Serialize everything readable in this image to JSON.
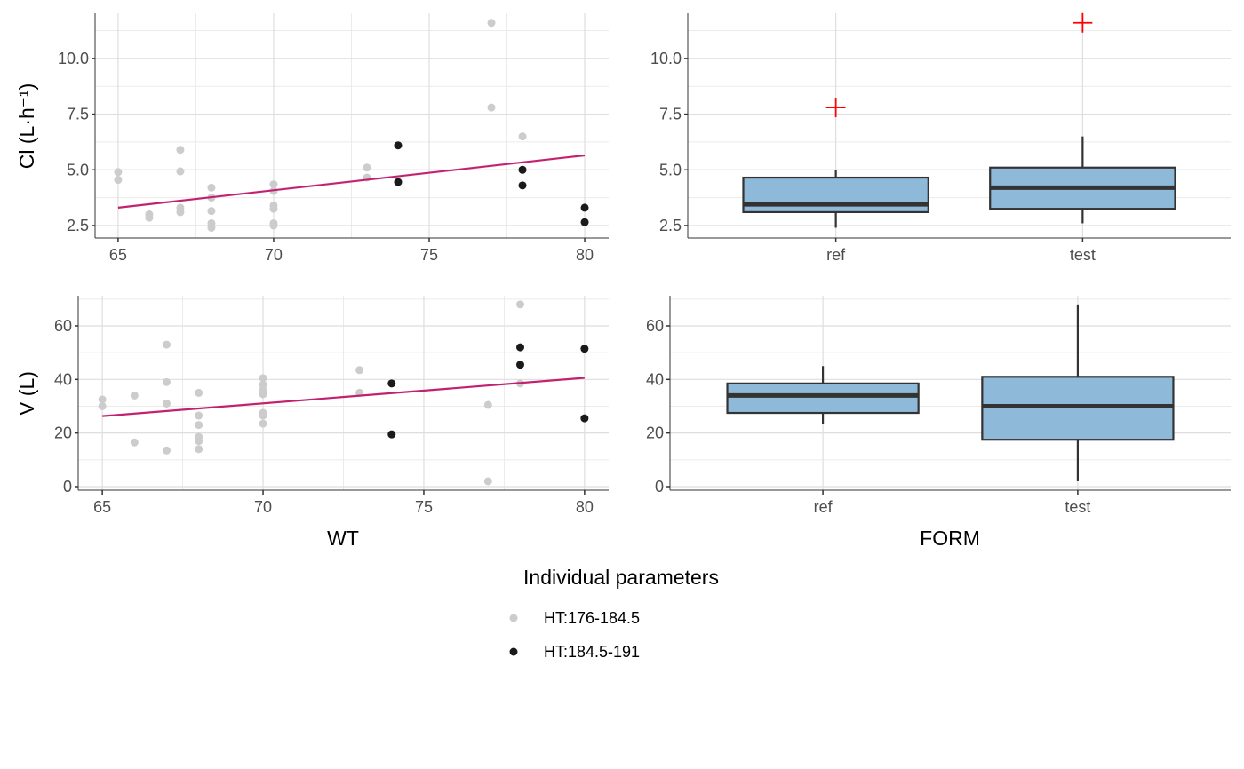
{
  "chart_data": [
    {
      "id": "cl-wt",
      "type": "scatter",
      "xlabel": "",
      "ylabel": "Cl (L·h⁻¹)",
      "xlim": [
        64.26,
        80.77
      ],
      "ylim": [
        1.94,
        12.03
      ],
      "xticks": [
        65,
        70,
        75,
        80
      ],
      "yticks": [
        2.5,
        5.0,
        7.5,
        10.0
      ],
      "ytick_labels": [
        "2.5",
        "5.0",
        "7.5",
        "10.0"
      ],
      "xminor": [
        67.5,
        72.5,
        77.5
      ],
      "yminor": [
        3.75,
        6.25,
        8.75,
        11.25
      ],
      "series": [
        {
          "name": "HT:176-184.5",
          "color": "#cccccc",
          "points": [
            [
              65,
              4.9
            ],
            [
              65,
              4.55
            ],
            [
              66,
              3.0
            ],
            [
              66,
              2.85
            ],
            [
              67,
              5.9
            ],
            [
              67,
              4.93
            ],
            [
              67,
              3.3
            ],
            [
              67,
              3.1
            ],
            [
              68,
              4.2
            ],
            [
              68,
              3.75
            ],
            [
              68,
              3.15
            ],
            [
              68,
              2.6
            ],
            [
              68,
              2.4
            ],
            [
              70,
              4.35
            ],
            [
              70,
              4.05
            ],
            [
              70,
              3.4
            ],
            [
              70,
              3.25
            ],
            [
              70,
              2.6
            ],
            [
              70,
              2.5
            ],
            [
              73,
              5.1
            ],
            [
              73,
              4.65
            ],
            [
              77,
              11.6
            ],
            [
              77,
              7.8
            ],
            [
              78,
              6.5
            ],
            [
              78,
              5.0
            ]
          ]
        },
        {
          "name": "HT:184.5-191",
          "color": "#1a1a1a",
          "points": [
            [
              74,
              6.1
            ],
            [
              74,
              4.45
            ],
            [
              78,
              5.0
            ],
            [
              78,
              4.3
            ],
            [
              80,
              3.3
            ],
            [
              80,
              2.65
            ]
          ]
        }
      ],
      "trend": {
        "color": "#c2216f",
        "from": [
          65,
          3.3
        ],
        "to": [
          80,
          5.65
        ]
      }
    },
    {
      "id": "cl-form",
      "type": "box",
      "xlabel": "",
      "ylabel": "",
      "categories": [
        "ref",
        "test"
      ],
      "ylim": [
        1.94,
        12.03
      ],
      "yticks": [
        2.5,
        5.0,
        7.5,
        10.0
      ],
      "ytick_labels": [
        "2.5",
        "5.0",
        "7.5",
        "10.0"
      ],
      "yminor": [
        3.75,
        6.25,
        8.75,
        11.25
      ],
      "boxes": [
        {
          "min": 2.4,
          "q1": 3.1,
          "median": 3.45,
          "q3": 4.65,
          "max": 5.0,
          "outliers": [
            7.8
          ]
        },
        {
          "min": 2.6,
          "q1": 3.25,
          "median": 4.2,
          "q3": 5.1,
          "max": 6.5,
          "outliers": [
            11.6
          ]
        }
      ],
      "fill": "#8fb9d9",
      "outlier_color": "#ff0000"
    },
    {
      "id": "v-wt",
      "type": "scatter",
      "xlabel": "WT",
      "ylabel": "V (L)",
      "xlim": [
        64.25,
        80.75
      ],
      "ylim": [
        -1.33,
        71.27
      ],
      "xticks": [
        65,
        70,
        75,
        80
      ],
      "yticks": [
        0,
        20,
        40,
        60
      ],
      "ytick_labels": [
        "0",
        "20",
        "40",
        "60"
      ],
      "xminor": [
        67.5,
        72.5,
        77.5
      ],
      "yminor": [
        10,
        30,
        50,
        70
      ],
      "series": [
        {
          "name": "HT:176-184.5",
          "color": "#cccccc",
          "points": [
            [
              65,
              32.5
            ],
            [
              65,
              30
            ],
            [
              66,
              34
            ],
            [
              66,
              16.5
            ],
            [
              67,
              53
            ],
            [
              67,
              39
            ],
            [
              67,
              31
            ],
            [
              67,
              13.5
            ],
            [
              68,
              35
            ],
            [
              68,
              26.5
            ],
            [
              68,
              23
            ],
            [
              68,
              18.5
            ],
            [
              68,
              17
            ],
            [
              68,
              14
            ],
            [
              70,
              40.5
            ],
            [
              70,
              38
            ],
            [
              70,
              36
            ],
            [
              70,
              34.5
            ],
            [
              70,
              27.5
            ],
            [
              70,
              26.5
            ],
            [
              70,
              23.5
            ],
            [
              73,
              43.5
            ],
            [
              73,
              35
            ],
            [
              77,
              30.5
            ],
            [
              77,
              2
            ],
            [
              78,
              68
            ],
            [
              78,
              38.5
            ]
          ]
        },
        {
          "name": "HT:184.5-191",
          "color": "#1a1a1a",
          "points": [
            [
              74,
              38.5
            ],
            [
              74,
              19.5
            ],
            [
              78,
              52
            ],
            [
              78,
              45.5
            ],
            [
              80,
              51.5
            ],
            [
              80,
              25.5
            ]
          ]
        }
      ],
      "trend": {
        "color": "#c2216f",
        "from": [
          65,
          26.3
        ],
        "to": [
          80,
          40.6
        ]
      }
    },
    {
      "id": "v-form",
      "type": "box",
      "xlabel": "FORM",
      "ylabel": "",
      "categories": [
        "ref",
        "test"
      ],
      "ylim": [
        -1.33,
        71.27
      ],
      "yticks": [
        0,
        20,
        40,
        60
      ],
      "ytick_labels": [
        "0",
        "20",
        "40",
        "60"
      ],
      "yminor": [
        10,
        30,
        50,
        70
      ],
      "boxes": [
        {
          "min": 23.5,
          "q1": 27.5,
          "median": 34,
          "q3": 38.5,
          "max": 45,
          "outliers": []
        },
        {
          "min": 2,
          "q1": 17.5,
          "median": 30,
          "q3": 41,
          "max": 68,
          "outliers": []
        }
      ],
      "fill": "#8fb9d9",
      "outlier_color": "#ff0000"
    }
  ],
  "legend": {
    "title": "Individual parameters",
    "position": "bottom",
    "items": [
      {
        "label": "HT:176-184.5",
        "color": "#cccccc"
      },
      {
        "label": "HT:184.5-191",
        "color": "#1a1a1a"
      }
    ]
  }
}
